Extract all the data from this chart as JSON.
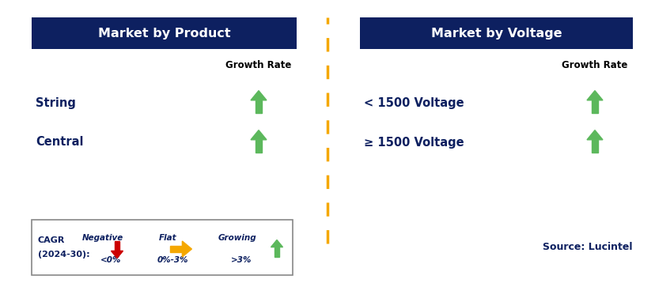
{
  "background_color": "#ffffff",
  "header_bg_color": "#0d2060",
  "header_text_color": "#ffffff",
  "left_panel_title": "Market by Product",
  "right_panel_title": "Market by Voltage",
  "left_rows": [
    "String",
    "Central"
  ],
  "right_rows": [
    "< 1500 Voltage",
    "≥ 1500 Voltage"
  ],
  "col_header": "Growth Rate",
  "arrow_up_color": "#5cb85c",
  "arrow_down_color": "#cc0000",
  "arrow_flat_color": "#f5a800",
  "divider_color": "#f5a800",
  "legend_border_color": "#888888",
  "text_color": "#0d2060",
  "source_text": "Source: Lucintel",
  "legend_label_line1": "CAGR",
  "legend_label_line2": "(2024-30):",
  "legend_negative_label": "Negative",
  "legend_negative_range": "<0%",
  "legend_flat_label": "Flat",
  "legend_flat_range": "0%-3%",
  "legend_growing_label": "Growing",
  "legend_growing_range": ">3%",
  "fig_w": 8.29,
  "fig_h": 3.58,
  "dpi": 100
}
